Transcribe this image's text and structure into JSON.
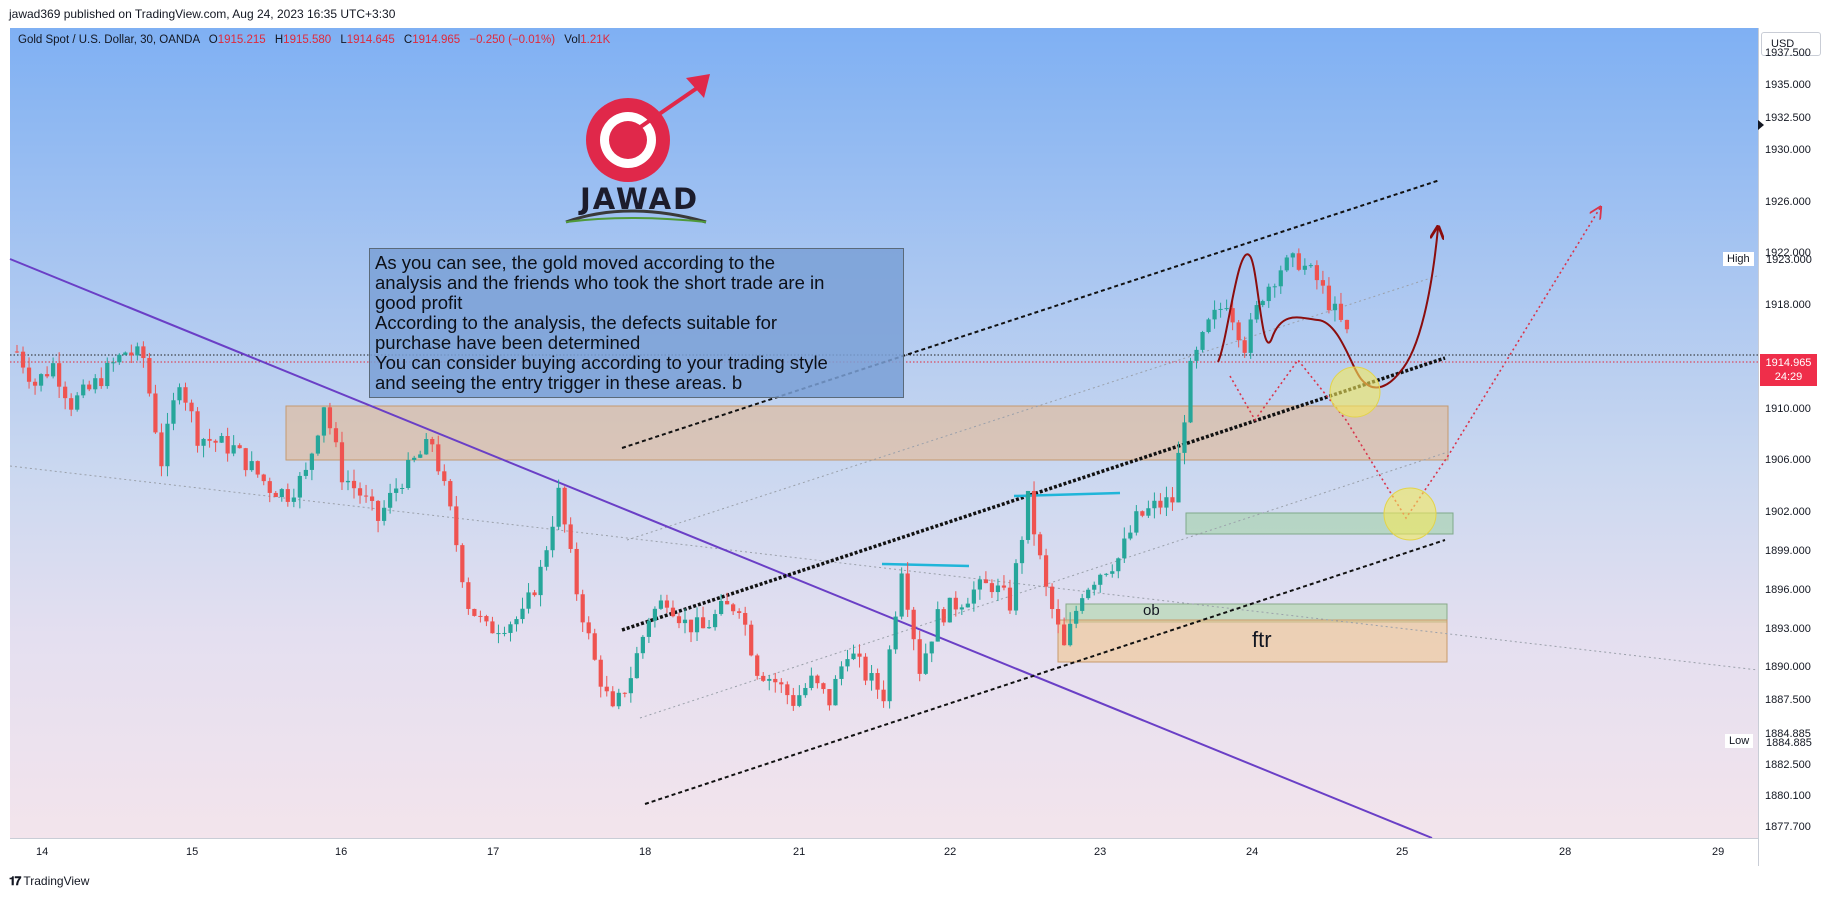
{
  "header": {
    "published": "jawad369 published on TradingView.com, Aug 24, 2023 16:35 UTC+3:30"
  },
  "legend": {
    "symbol": "Gold Spot / U.S. Dollar, 30, OANDA",
    "o_label": "O",
    "o": "1915.215",
    "h_label": "H",
    "h": "1915.580",
    "l_label": "L",
    "l": "1914.645",
    "c_label": "C",
    "c": "1914.965",
    "change": "−0.250 (−0.01%)",
    "vol_label": "Vol",
    "vol": "1.21K"
  },
  "currency": "USD",
  "logo": {
    "text": "JAWAD"
  },
  "annotation": {
    "lines": [
      "As you can see, the gold moved according to the",
      "analysis and the friends who took the short trade are in",
      "good profit",
      "According to the analysis, the defects suitable for",
      "purchase have been determined",
      "You can consider buying according to your trading style",
      "and seeing the entry trigger in these areas. b"
    ]
  },
  "markers": {
    "high_label": "High",
    "high_value": "1923.000",
    "low_label": "Low",
    "low_value": "1884.885",
    "last_price": "1914.965",
    "countdown": "24:29"
  },
  "zones": {
    "ob": "ob",
    "ftr": "ftr"
  },
  "footer": {
    "brand": "TradingView"
  },
  "colors": {
    "bull": "#26a69a",
    "bear": "#ef5350",
    "trendline": "#6a3fc6",
    "cyan": "#1fb5d9",
    "curve": "#8b0d0d"
  },
  "chart_data": {
    "type": "candlestick",
    "symbol": "XAUUSD",
    "timeframe": "30",
    "x_ticks": [
      "14",
      "15",
      "16",
      "17",
      "18",
      "21",
      "22",
      "23",
      "24",
      "25",
      "28",
      "29"
    ],
    "y_ticks": [
      "1937.500",
      "1935.000",
      "1932.500",
      "1930.000",
      "1926.000",
      "1922.000",
      "1918.000",
      "1910.000",
      "1906.000",
      "1902.000",
      "1899.000",
      "1896.000",
      "1893.000",
      "1890.000",
      "1887.500",
      "1884.885",
      "1882.500",
      "1880.100",
      "1877.700"
    ],
    "ylim": [
      1876.9,
      1939.5
    ],
    "close_path": [
      [
        "14",
        1914.5
      ],
      [
        "14",
        1912.0
      ],
      [
        "14",
        1913.5
      ],
      [
        "14",
        1910.5
      ],
      [
        "14",
        1911.5
      ],
      [
        "14",
        1913.0
      ],
      [
        "14",
        1914.5
      ],
      [
        "14",
        1914.0
      ],
      [
        "15",
        1906.0
      ],
      [
        "15",
        1912.5
      ],
      [
        "15",
        1908.0
      ],
      [
        "15",
        1907.5
      ],
      [
        "15",
        1907.0
      ],
      [
        "15",
        1905.5
      ],
      [
        "15",
        1904.0
      ],
      [
        "15",
        1903.5
      ],
      [
        "16",
        1905.0
      ],
      [
        "16",
        1910.5
      ],
      [
        "16",
        1905.0
      ],
      [
        "16",
        1903.5
      ],
      [
        "16",
        1901.5
      ],
      [
        "16",
        1904.0
      ],
      [
        "16",
        1906.0
      ],
      [
        "16",
        1907.5
      ],
      [
        "16",
        1902.0
      ],
      [
        "17",
        1895.0
      ],
      [
        "17",
        1893.0
      ],
      [
        "17",
        1893.5
      ],
      [
        "17",
        1894.0
      ],
      [
        "17",
        1897.5
      ],
      [
        "17",
        1903.5
      ],
      [
        "17",
        1896.0
      ],
      [
        "17",
        1890.5
      ],
      [
        "18",
        1886.5
      ],
      [
        "18",
        1889.5
      ],
      [
        "18",
        1894.0
      ],
      [
        "18",
        1895.5
      ],
      [
        "18",
        1893.5
      ],
      [
        "18",
        1893.0
      ],
      [
        "18",
        1894.5
      ],
      [
        "18",
        1895.0
      ],
      [
        "21",
        1890.0
      ],
      [
        "21",
        1889.0
      ],
      [
        "21",
        1887.5
      ],
      [
        "21",
        1889.0
      ],
      [
        "21",
        1887.5
      ],
      [
        "21",
        1891.5
      ],
      [
        "21",
        1889.5
      ],
      [
        "21",
        1888.0
      ],
      [
        "22",
        1898.0
      ],
      [
        "22",
        1890.0
      ],
      [
        "22",
        1894.0
      ],
      [
        "22",
        1895.0
      ],
      [
        "22",
        1896.0
      ],
      [
        "22",
        1896.5
      ],
      [
        "22",
        1895.0
      ],
      [
        "22",
        1903.0
      ],
      [
        "23",
        1896.0
      ],
      [
        "23",
        1891.5
      ],
      [
        "23",
        1896.0
      ],
      [
        "23",
        1897.5
      ],
      [
        "23",
        1898.5
      ],
      [
        "23",
        1901.5
      ],
      [
        "23",
        1902.5
      ],
      [
        "23",
        1903.0
      ],
      [
        "24",
        1913.0
      ],
      [
        "24",
        1916.5
      ],
      [
        "24",
        1918.5
      ],
      [
        "24",
        1915.0
      ],
      [
        "24",
        1919.0
      ],
      [
        "24",
        1921.0
      ],
      [
        "24",
        1921.5
      ],
      [
        "24",
        1920.0
      ],
      [
        "25",
        1917.5
      ],
      [
        "25",
        1914.965
      ]
    ]
  }
}
